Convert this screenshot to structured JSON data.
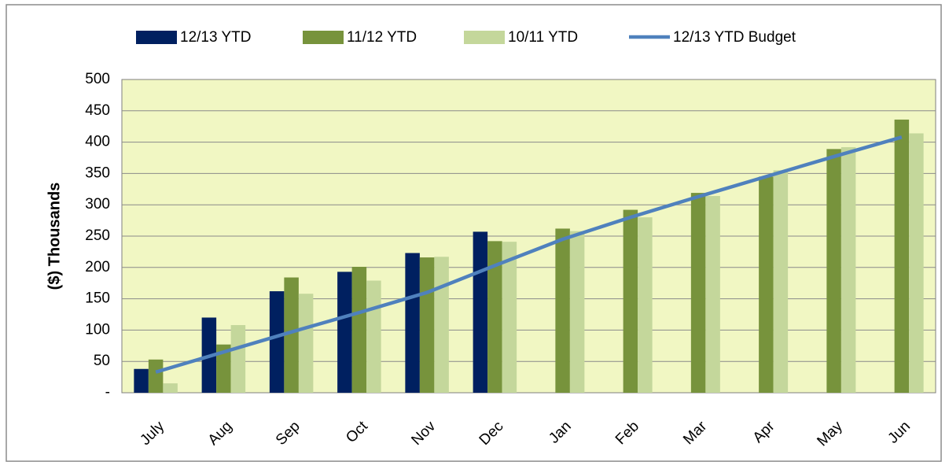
{
  "chart_data": {
    "type": "bar",
    "y_label": "($) Thousands",
    "categories": [
      "July",
      "Aug",
      "Sep",
      "Oct",
      "Nov",
      "Dec",
      "Jan",
      "Feb",
      "Mar",
      "Apr",
      "May",
      "Jun"
    ],
    "series": [
      {
        "name": "12/13 YTD",
        "color": "#002060",
        "type": "bar",
        "values": [
          38,
          120,
          162,
          193,
          223,
          257,
          null,
          null,
          null,
          null,
          null,
          null
        ]
      },
      {
        "name": "11/12 YTD",
        "color": "#77933c",
        "type": "bar",
        "values": [
          53,
          77,
          184,
          201,
          216,
          242,
          262,
          292,
          319,
          345,
          389,
          436
        ]
      },
      {
        "name": "10/11 YTD",
        "color": "#c4d79b",
        "type": "bar",
        "values": [
          15,
          108,
          158,
          179,
          217,
          241,
          258,
          280,
          314,
          355,
          392,
          414
        ]
      },
      {
        "name": "12/13 YTD Budget",
        "color": "#4f81bd",
        "type": "line",
        "values": [
          33,
          65,
          97,
          128,
          160,
          203,
          245,
          280,
          313,
          345,
          377,
          408
        ]
      }
    ],
    "ylim": [
      0,
      500
    ],
    "yticks": [
      {
        "value": 0,
        "label": "-"
      },
      50,
      100,
      150,
      200,
      250,
      300,
      350,
      400,
      450,
      500
    ],
    "grid": true,
    "legend": "top"
  }
}
